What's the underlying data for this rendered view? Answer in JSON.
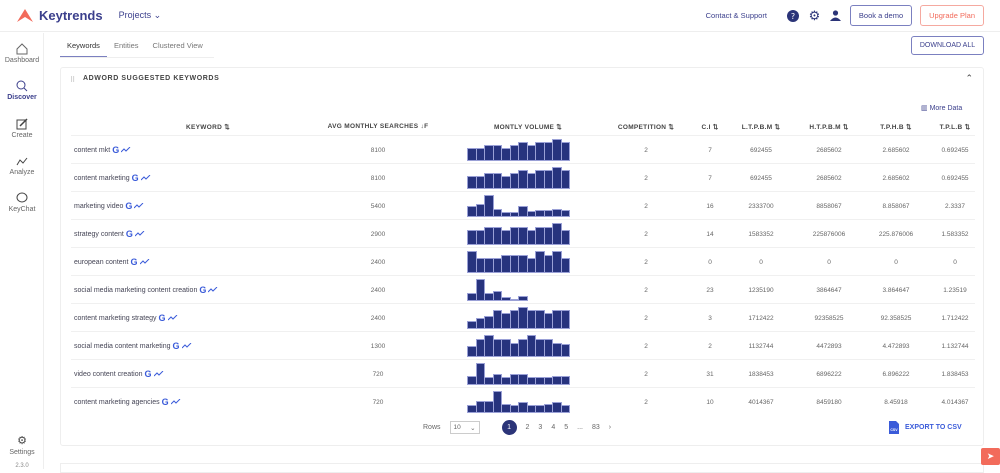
{
  "header": {
    "brand": "Keytrends",
    "projects": "Projects ⌄",
    "contact": "Contact & Support",
    "book_demo": "Book a demo",
    "upgrade": "Upgrade Plan"
  },
  "sidebar": {
    "items": [
      {
        "label": "Dashboard",
        "icon": "home-icon"
      },
      {
        "label": "Discover",
        "icon": "search-icon",
        "active": true
      },
      {
        "label": "Create",
        "icon": "edit-icon"
      },
      {
        "label": "Analyze",
        "icon": "trend-icon"
      },
      {
        "label": "KeyChat",
        "icon": "chat-icon"
      }
    ],
    "settings": "Settings",
    "version": "2.3.0"
  },
  "tabs": [
    "Keywords",
    "Entities",
    "Clustered View"
  ],
  "download_all": "DOWNLOAD ALL",
  "panel": {
    "title": "ADWORD SUGGESTED KEYWORDS",
    "more_data": "More Data",
    "columns": [
      "KEYWORD ⇅",
      "AVG MONTHLY SEARCHES ↓F",
      "MONTLY VOLUME ⇅",
      "COMPETITION ⇅",
      "C.I ⇅",
      "L.T.P.B.M ⇅",
      "H.T.P.B.M ⇅",
      "T.P.H.B ⇅",
      "T.P.L.B ⇅"
    ],
    "rows": [
      {
        "keyword": "content mkt",
        "avg": "8100",
        "volume": [
          55,
          55,
          68,
          68,
          55,
          68,
          84,
          68,
          84,
          84,
          100,
          84
        ],
        "competition": "2",
        "ci": "7",
        "ltpbm": "692455",
        "htpbm": "2685602",
        "tphb": "2.685602",
        "tplb": "0.692455"
      },
      {
        "keyword": "content marketing",
        "avg": "8100",
        "volume": [
          55,
          55,
          68,
          68,
          55,
          68,
          84,
          68,
          84,
          84,
          100,
          84
        ],
        "competition": "2",
        "ci": "7",
        "ltpbm": "692455",
        "htpbm": "2685602",
        "tphb": "2.685602",
        "tplb": "0.692455"
      },
      {
        "keyword": "marketing video",
        "avg": "5400",
        "volume": [
          47,
          55,
          100,
          30,
          17,
          17,
          47,
          20,
          25,
          25,
          30,
          25
        ],
        "competition": "2",
        "ci": "16",
        "ltpbm": "2333700",
        "htpbm": "8858067",
        "tphb": "8.858067",
        "tplb": "2.3337"
      },
      {
        "keyword": "strategy content",
        "avg": "2900",
        "volume": [
          65,
          65,
          80,
          80,
          65,
          80,
          80,
          65,
          80,
          80,
          100,
          65
        ],
        "competition": "2",
        "ci": "14",
        "ltpbm": "1583352",
        "htpbm": "225876006",
        "tphb": "225.876006",
        "tplb": "1.583352"
      },
      {
        "keyword": "european content",
        "avg": "2400",
        "volume": [
          100,
          65,
          65,
          65,
          80,
          80,
          80,
          65,
          100,
          80,
          100,
          65
        ],
        "competition": "2",
        "ci": "0",
        "ltpbm": "0",
        "htpbm": "0",
        "tphb": "0",
        "tplb": "0"
      },
      {
        "keyword": "social media marketing content creation",
        "avg": "2400",
        "volume": [
          28,
          100,
          28,
          38,
          8,
          2,
          15,
          0,
          0,
          0,
          0,
          0
        ],
        "competition": "2",
        "ci": "23",
        "ltpbm": "1235190",
        "htpbm": "3864647",
        "tphb": "3.864647",
        "tplb": "1.23519"
      },
      {
        "keyword": "content marketing strategy",
        "avg": "2400",
        "volume": [
          30,
          45,
          55,
          85,
          70,
          85,
          100,
          85,
          85,
          70,
          85,
          85
        ],
        "competition": "2",
        "ci": "3",
        "ltpbm": "1712422",
        "htpbm": "92358525",
        "tphb": "92.358525",
        "tplb": "1.712422"
      },
      {
        "keyword": "social media content marketing",
        "avg": "1300",
        "volume": [
          45,
          80,
          100,
          80,
          80,
          62,
          80,
          100,
          80,
          80,
          62,
          55
        ],
        "competition": "2",
        "ci": "2",
        "ltpbm": "1132744",
        "htpbm": "4472893",
        "tphb": "4.472893",
        "tplb": "1.132744"
      },
      {
        "keyword": "video content creation",
        "avg": "720",
        "volume": [
          35,
          100,
          30,
          45,
          30,
          45,
          45,
          30,
          30,
          30,
          35,
          35
        ],
        "competition": "2",
        "ci": "31",
        "ltpbm": "1838453",
        "htpbm": "6896222",
        "tphb": "6.896222",
        "tplb": "1.838453"
      },
      {
        "keyword": "content marketing agencies",
        "avg": "720",
        "volume": [
          30,
          50,
          50,
          100,
          35,
          30,
          45,
          30,
          30,
          35,
          45,
          30
        ],
        "competition": "2",
        "ci": "10",
        "ltpbm": "4014367",
        "htpbm": "8459180",
        "tphb": "8.45918",
        "tplb": "4.014367"
      }
    ]
  },
  "pagination": {
    "rows_label": "Rows",
    "rows_value": "10",
    "pages": [
      "1",
      "2",
      "3",
      "4",
      "5",
      "...",
      "83"
    ],
    "current": "1"
  },
  "export": "EXPORT TO CSV",
  "colors": {
    "accent": "#2b3478",
    "bar": "#27337e",
    "upgrade": "#f26b5b"
  }
}
